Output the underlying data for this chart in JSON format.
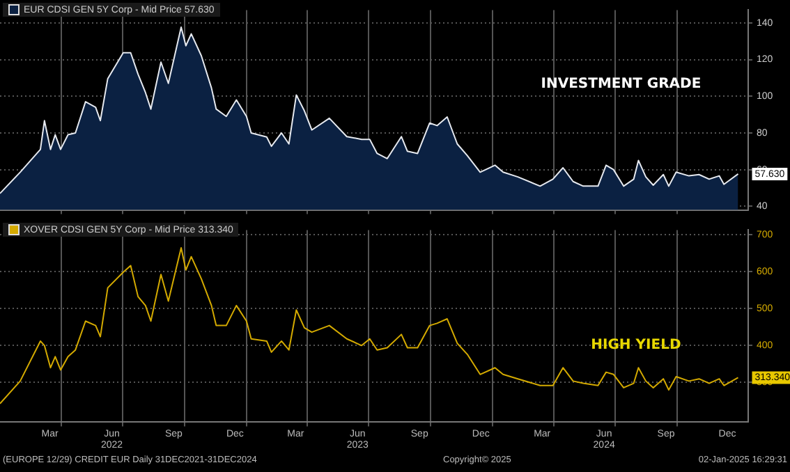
{
  "chart_data": [
    {
      "type": "area",
      "tick_labels": "y",
      "grid": true,
      "legend": "top left",
      "x": [
        "2021-12-31",
        "2022-01-30",
        "2022-03-01",
        "2022-03-07",
        "2022-03-16",
        "2022-03-23",
        "2022-03-31",
        "2022-04-11",
        "2022-04-22",
        "2022-05-07",
        "2022-05-22",
        "2022-05-29",
        "2022-06-09",
        "2022-07-02",
        "2022-07-13",
        "2022-07-24",
        "2022-08-04",
        "2022-08-12",
        "2022-08-27",
        "2022-09-07",
        "2022-09-26",
        "2022-10-03",
        "2022-10-11",
        "2022-10-26",
        "2022-11-10",
        "2022-11-17",
        "2022-12-02",
        "2022-12-17",
        "2023-01-01",
        "2023-01-08",
        "2023-01-31",
        "2023-02-07",
        "2023-02-22",
        "2023-03-05",
        "2023-03-16",
        "2023-03-28",
        "2023-04-08",
        "2023-05-04",
        "2023-05-30",
        "2023-06-21",
        "2023-07-03",
        "2023-07-14",
        "2023-07-29",
        "2023-08-19",
        "2023-08-28",
        "2023-09-12",
        "2023-09-30",
        "2023-10-11",
        "2023-10-26",
        "2023-11-10",
        "2023-11-25",
        "2023-12-14",
        "2024-01-05",
        "2024-01-17",
        "2024-02-08",
        "2024-03-12",
        "2024-03-31",
        "2024-04-15",
        "2024-04-30",
        "2024-05-15",
        "2024-06-06",
        "2024-06-18",
        "2024-06-29",
        "2024-07-14",
        "2024-07-29",
        "2024-08-05",
        "2024-08-16",
        "2024-08-27",
        "2024-09-11",
        "2024-09-19",
        "2024-09-30",
        "2024-10-19",
        "2024-11-03",
        "2024-11-18",
        "2024-12-03",
        "2024-12-10",
        "2024-12-31"
      ],
      "series": [
        {
          "name": "EUR CDSI GEN 5Y Corp - Mid Price 57.630",
          "color": "#0b2142",
          "values": [
            47,
            58.6,
            71,
            86.7,
            71,
            79,
            71,
            79,
            80,
            97,
            94,
            86.7,
            109.6,
            123.7,
            123.7,
            112,
            102,
            93,
            118.6,
            107,
            137.7,
            127.5,
            134,
            122,
            104.5,
            93,
            89,
            98,
            89,
            80,
            77.8,
            72.7,
            80,
            74,
            100.7,
            92,
            81.6,
            88,
            78,
            76.5,
            76.5,
            68.8,
            66,
            78,
            70,
            68.8,
            85.4,
            84,
            88.7,
            74,
            67.6,
            58.6,
            62.4,
            58.6,
            56,
            51,
            54.8,
            61,
            53.5,
            51,
            51,
            62.4,
            60,
            51,
            54.8,
            65,
            56,
            51.5,
            57.3,
            51,
            58.6,
            56.6,
            57.3,
            54.8,
            56.6,
            52,
            57.63
          ]
        }
      ],
      "xlim": [
        "2021-12-31",
        "2025-01-15"
      ],
      "xticks": [
        {
          "value": "2022-04-01",
          "label": null
        },
        {
          "value": "2022-07-01",
          "label": null
        },
        {
          "value": "2022-10-01",
          "label": null
        },
        {
          "value": "2023-01-01",
          "label": null
        },
        {
          "value": "2023-04-01",
          "label": null
        },
        {
          "value": "2023-07-01",
          "label": null
        },
        {
          "value": "2023-10-01",
          "label": null
        },
        {
          "value": "2024-01-01",
          "label": null
        },
        {
          "value": "2024-04-01",
          "label": null
        },
        {
          "value": "2024-07-01",
          "label": null
        },
        {
          "value": "2024-10-01",
          "label": null
        }
      ],
      "ylim": [
        38,
        147
      ],
      "yticks": [
        40,
        60,
        80,
        100,
        120,
        140
      ],
      "annotations": [
        "INVESTMENT GRADE",
        {
          "text": "57.630",
          "x": "2024-12-31",
          "y": 57.63
        }
      ]
    },
    {
      "type": "line",
      "grid": true,
      "legend": "top left",
      "x": [
        "2021-12-31",
        "2022-01-30",
        "2022-03-01",
        "2022-03-07",
        "2022-03-16",
        "2022-03-23",
        "2022-03-31",
        "2022-04-11",
        "2022-04-22",
        "2022-05-07",
        "2022-05-22",
        "2022-05-29",
        "2022-06-09",
        "2022-07-02",
        "2022-07-13",
        "2022-07-24",
        "2022-08-04",
        "2022-08-12",
        "2022-08-27",
        "2022-09-07",
        "2022-09-26",
        "2022-10-03",
        "2022-10-11",
        "2022-10-26",
        "2022-11-10",
        "2022-11-17",
        "2022-12-02",
        "2022-12-17",
        "2023-01-01",
        "2023-01-08",
        "2023-01-31",
        "2023-02-07",
        "2023-02-22",
        "2023-03-05",
        "2023-03-16",
        "2023-03-28",
        "2023-04-08",
        "2023-05-04",
        "2023-05-30",
        "2023-06-21",
        "2023-07-03",
        "2023-07-14",
        "2023-07-29",
        "2023-08-19",
        "2023-08-28",
        "2023-09-12",
        "2023-09-30",
        "2023-10-11",
        "2023-10-26",
        "2023-11-10",
        "2023-11-25",
        "2023-12-14",
        "2024-01-05",
        "2024-01-17",
        "2024-02-08",
        "2024-03-12",
        "2024-03-31",
        "2024-04-15",
        "2024-04-30",
        "2024-05-15",
        "2024-06-06",
        "2024-06-18",
        "2024-06-29",
        "2024-07-14",
        "2024-07-29",
        "2024-08-05",
        "2024-08-16",
        "2024-08-27",
        "2024-09-11",
        "2024-09-19",
        "2024-09-30",
        "2024-10-19",
        "2024-11-03",
        "2024-11-18",
        "2024-12-03",
        "2024-12-10",
        "2024-12-31"
      ],
      "series": [
        {
          "name": "XOVER CDSI GEN 5Y Corp - Mid Price 313.340",
          "color": "#d4aa00",
          "values": [
            243,
            304,
            412,
            400,
            340,
            370,
            334,
            370,
            388,
            466,
            454,
            424,
            556,
            598,
            616,
            532,
            508,
            466,
            592,
            520,
            664,
            604,
            640,
            580,
            508,
            454,
            454,
            508,
            466,
            418,
            412,
            382,
            412,
            388,
            496,
            448,
            436,
            454,
            418,
            400,
            418,
            388,
            394,
            430,
            394,
            394,
            454,
            460,
            472,
            406,
            376,
            322,
            340,
            322,
            310,
            292,
            292,
            340,
            304,
            298,
            292,
            328,
            322,
            286,
            298,
            340,
            304,
            286,
            310,
            280,
            316,
            304,
            310,
            298,
            310,
            292,
            313.34
          ]
        }
      ],
      "xlim": [
        "2021-12-31",
        "2025-01-15"
      ],
      "xticks": [
        {
          "value": "2022-03-15",
          "label": "Mar"
        },
        {
          "value": "2022-04-01",
          "label": null
        },
        {
          "value": "2022-06-15",
          "label": "Jun\n2022"
        },
        {
          "value": "2022-07-01",
          "label": null
        },
        {
          "value": "2022-09-15",
          "label": "Sep"
        },
        {
          "value": "2022-10-01",
          "label": null
        },
        {
          "value": "2022-12-15",
          "label": "Dec"
        },
        {
          "value": "2023-01-01",
          "label": null
        },
        {
          "value": "2023-03-15",
          "label": "Mar"
        },
        {
          "value": "2023-04-01",
          "label": null
        },
        {
          "value": "2023-06-15",
          "label": "Jun\n2023"
        },
        {
          "value": "2023-07-01",
          "label": null
        },
        {
          "value": "2023-09-15",
          "label": "Sep"
        },
        {
          "value": "2023-10-01",
          "label": null
        },
        {
          "value": "2023-12-15",
          "label": "Dec"
        },
        {
          "value": "2024-01-01",
          "label": null
        },
        {
          "value": "2024-03-15",
          "label": "Mar"
        },
        {
          "value": "2024-04-01",
          "label": null
        },
        {
          "value": "2024-06-15",
          "label": "Jun\n2024"
        },
        {
          "value": "2024-07-01",
          "label": null
        },
        {
          "value": "2024-09-15",
          "label": "Sep"
        },
        {
          "value": "2024-10-01",
          "label": null
        },
        {
          "value": "2024-12-15",
          "label": "Dec"
        }
      ],
      "ylim": [
        193,
        712
      ],
      "yticks": [
        300,
        400,
        500,
        600,
        700
      ],
      "annotations": [
        "HIGH YIELD",
        {
          "text": "313.340",
          "x": "2024-12-31",
          "y": 313.34
        },
        "(EUROPE 12/29) CREDIT EUR  Daily 31DEC2021-31DEC2024",
        "Copyright© 2025",
        "02-Jan-2025 16:29:31"
      ]
    }
  ]
}
